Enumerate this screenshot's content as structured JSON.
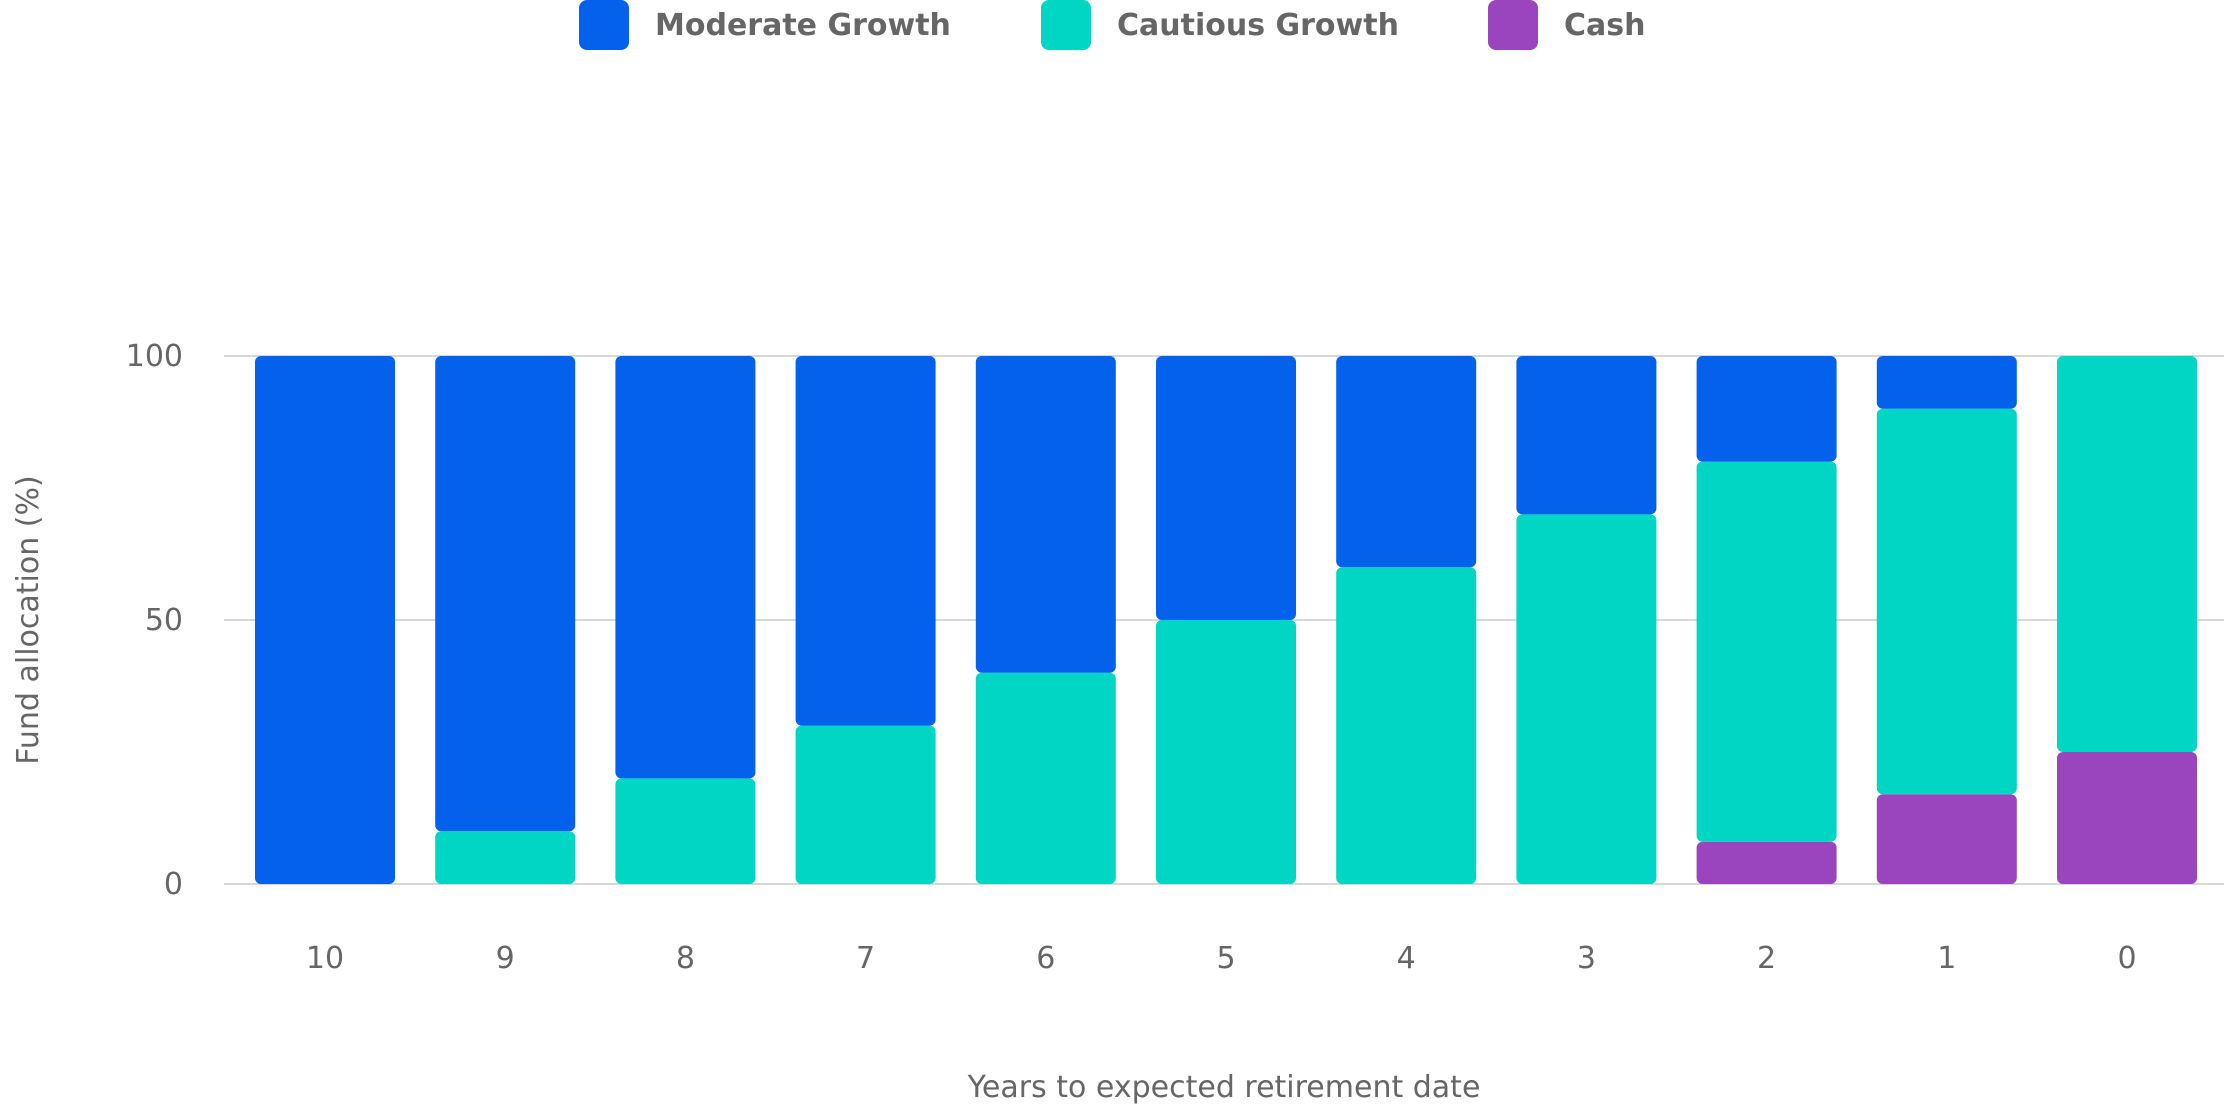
{
  "colors": {
    "moderate_growth": "#0361EC",
    "cautious_growth": "#00D6C3",
    "cash": "#9A44BE",
    "gridline": "#CCCCCC",
    "axis_text": "#666666"
  },
  "chart_data": {
    "type": "bar",
    "stacked": true,
    "xlabel": "Years to expected retirement date",
    "ylabel": "Fund allocation (%)",
    "ylim": [
      0,
      100
    ],
    "yticks": [
      "0",
      "50",
      "100"
    ],
    "categories": [
      "10",
      "9",
      "8",
      "7",
      "6",
      "5",
      "4",
      "3",
      "2",
      "1",
      "0"
    ],
    "legend_position": "top",
    "grid": true,
    "series": [
      {
        "name": "Cash",
        "color": "#9A44BE",
        "values": [
          0,
          0,
          0,
          0,
          0,
          0,
          0,
          0,
          8,
          17,
          25
        ]
      },
      {
        "name": "Cautious Growth",
        "color": "#00D6C3",
        "values": [
          0,
          10,
          20,
          30,
          40,
          50,
          60,
          70,
          72,
          73,
          75
        ]
      },
      {
        "name": "Moderate Growth",
        "color": "#0361EC",
        "values": [
          100,
          90,
          80,
          70,
          60,
          50,
          40,
          30,
          20,
          10,
          0
        ]
      }
    ],
    "legend": [
      "Moderate Growth",
      "Cautious Growth",
      "Cash"
    ]
  }
}
